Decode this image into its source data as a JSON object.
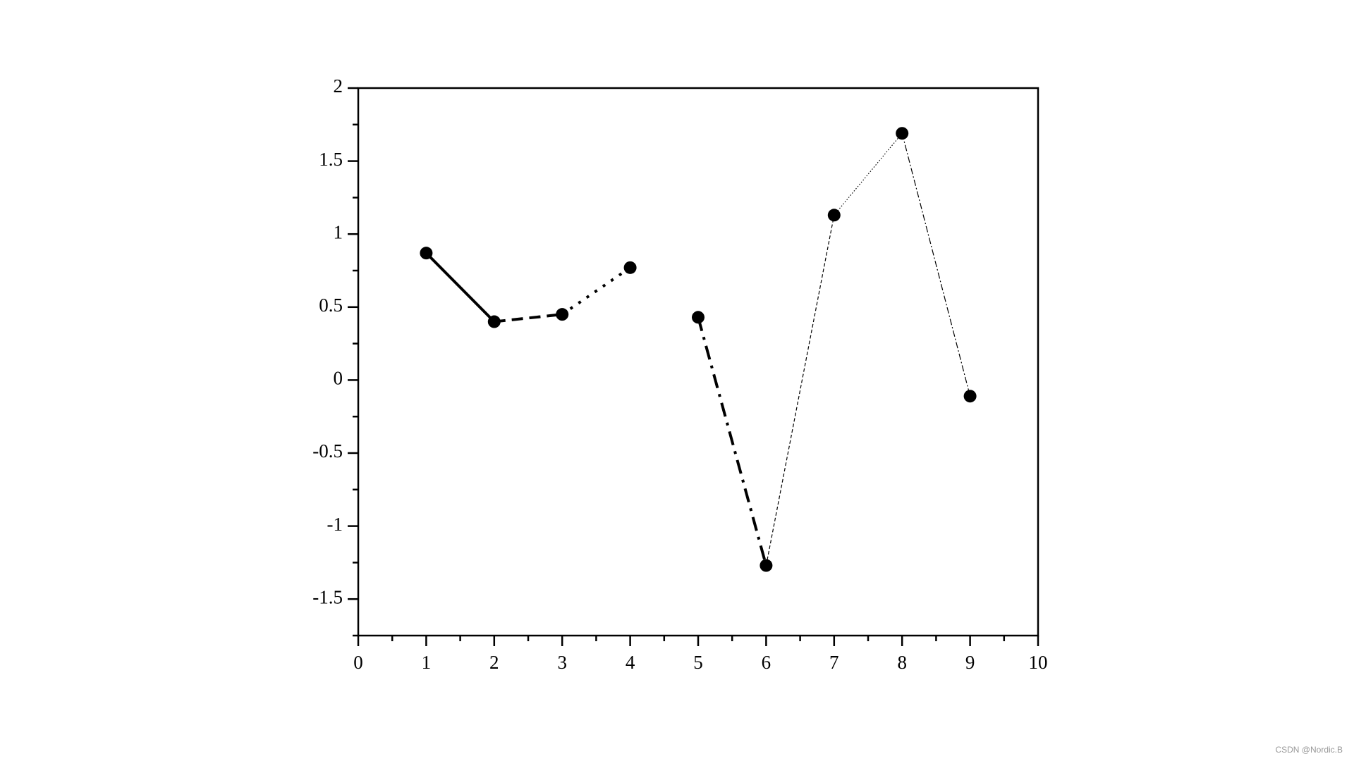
{
  "chart_data": {
    "type": "line",
    "x": [
      1,
      2,
      3,
      4,
      5,
      6,
      7,
      8,
      9
    ],
    "series": [
      {
        "color": "#000000",
        "values": [
          0.87,
          0.4,
          0.45,
          0.77,
          0.43,
          -1.27,
          1.13,
          1.69,
          -0.11
        ]
      }
    ],
    "segment_styles": [
      "solid",
      "dashed",
      "dotted",
      null,
      "dashdot",
      "dashed",
      "dotted",
      "dashdot"
    ],
    "segment_widths": [
      "thick",
      "thick",
      "thick",
      null,
      "thick",
      "thin",
      "thin",
      "thin"
    ],
    "markers": "circle",
    "xlim": [
      0,
      10
    ],
    "xticks": [
      0,
      1,
      2,
      3,
      4,
      5,
      6,
      7,
      8,
      9,
      10
    ],
    "ylim": [
      -1.75,
      2
    ],
    "yticks": [
      -1.5,
      -1,
      -0.5,
      0,
      0.5,
      1,
      1.5,
      2
    ],
    "grid": false,
    "watermark": "CSDN @Nordic.B"
  }
}
